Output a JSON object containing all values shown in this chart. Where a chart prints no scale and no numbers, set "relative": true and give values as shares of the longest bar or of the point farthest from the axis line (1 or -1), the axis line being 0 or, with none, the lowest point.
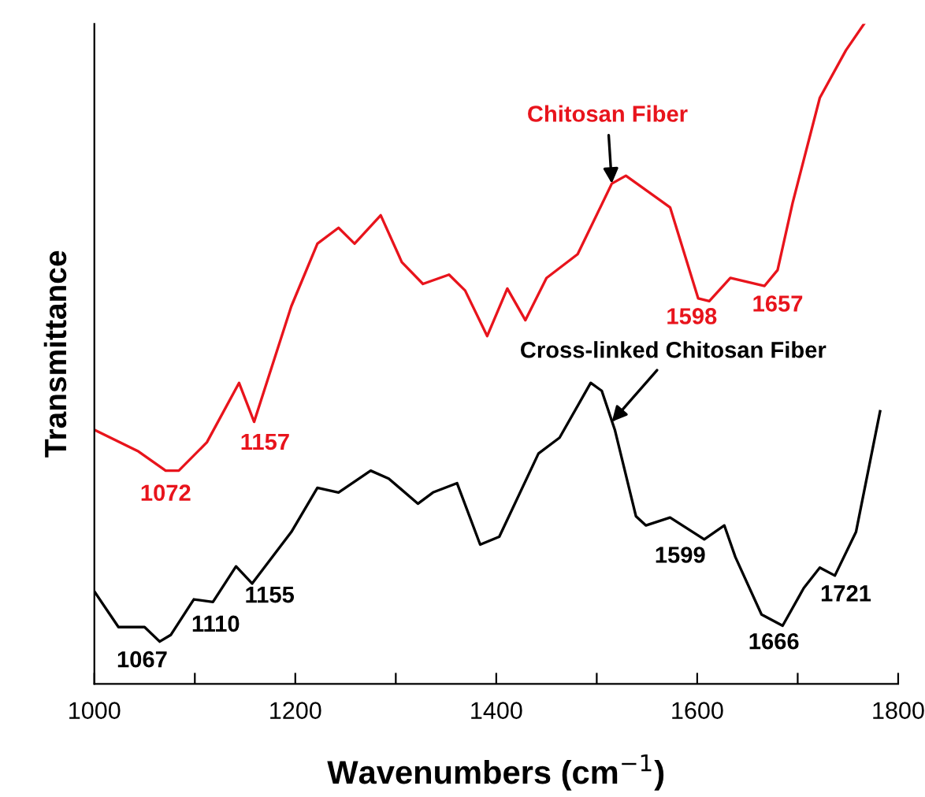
{
  "chart_data": {
    "type": "line",
    "relative": true,
    "xlabel": "Wavenumbers (cm$^{−1}$)",
    "ylabel": "Transmittance",
    "xlim": [
      1000,
      1800
    ],
    "xticks": [
      1000,
      {
        "value": 1100,
        "label": null
      },
      1200,
      {
        "value": 1300,
        "label": null
      },
      1400,
      {
        "value": 1500,
        "label": null
      },
      1600,
      {
        "value": 1700,
        "label": null
      },
      1800
    ],
    "grid": false,
    "legend": false,
    "marker": "none",
    "line_style": "solid",
    "series": [
      {
        "color": "#e8141c",
        "x": [
          1000,
          1044,
          1071,
          1084,
          1112,
          1144,
          1159,
          1196,
          1222,
          1243,
          1259,
          1285,
          1306,
          1327,
          1353,
          1369,
          1391,
          1411,
          1429,
          1450,
          1481,
          1515,
          1529,
          1573,
          1601,
          1612,
          1633,
          1667,
          1680,
          1695,
          1722,
          1748,
          1766
        ],
        "values": [
          0.385,
          0.352,
          0.323,
          0.323,
          0.366,
          0.456,
          0.397,
          0.572,
          0.667,
          0.691,
          0.667,
          0.71,
          0.639,
          0.606,
          0.62,
          0.596,
          0.527,
          0.599,
          0.551,
          0.615,
          0.651,
          0.758,
          0.77,
          0.722,
          0.584,
          0.58,
          0.615,
          0.603,
          0.627,
          0.729,
          0.888,
          0.96,
          1.0
        ]
      },
      {
        "color": "#000000",
        "x": [
          1000,
          1024,
          1050,
          1065,
          1076,
          1099,
          1118,
          1141,
          1157,
          1196,
          1222,
          1243,
          1275,
          1293,
          1322,
          1337,
          1361,
          1384,
          1403,
          1442,
          1463,
          1494,
          1505,
          1518,
          1539,
          1549,
          1573,
          1607,
          1627,
          1638,
          1664,
          1685,
          1706,
          1722,
          1737,
          1758,
          1782
        ],
        "values": [
          0.14,
          0.086,
          0.086,
          0.064,
          0.074,
          0.128,
          0.124,
          0.178,
          0.152,
          0.23,
          0.297,
          0.29,
          0.323,
          0.311,
          0.273,
          0.29,
          0.304,
          0.211,
          0.223,
          0.349,
          0.373,
          0.456,
          0.444,
          0.385,
          0.254,
          0.24,
          0.252,
          0.219,
          0.24,
          0.192,
          0.105,
          0.088,
          0.145,
          0.176,
          0.164,
          0.23,
          0.413
        ]
      }
    ],
    "annotations": [
      {
        "text": "Chitosan Fiber",
        "x": 1515,
        "y": 0.758
      },
      {
        "text": "1072",
        "x": 1071,
        "y": 0.323
      },
      {
        "text": "1157",
        "x": 1159,
        "y": 0.397
      },
      {
        "text": "1598",
        "x": 1601,
        "y": 0.584
      },
      {
        "text": "1657",
        "x": 1667,
        "y": 0.603
      },
      {
        "text": "Cross-linked Chitosan Fiber",
        "x": 1515,
        "y": 0.397
      },
      {
        "text": "1067",
        "x": 1065,
        "y": 0.064
      },
      {
        "text": "1110",
        "x": 1099,
        "y": 0.128
      },
      {
        "text": "1155",
        "x": 1157,
        "y": 0.152
      },
      {
        "text": "1599",
        "x": 1607,
        "y": 0.219
      },
      {
        "text": "1666",
        "x": 1685,
        "y": 0.088
      },
      {
        "text": "1721",
        "x": 1737,
        "y": 0.164
      }
    ]
  }
}
